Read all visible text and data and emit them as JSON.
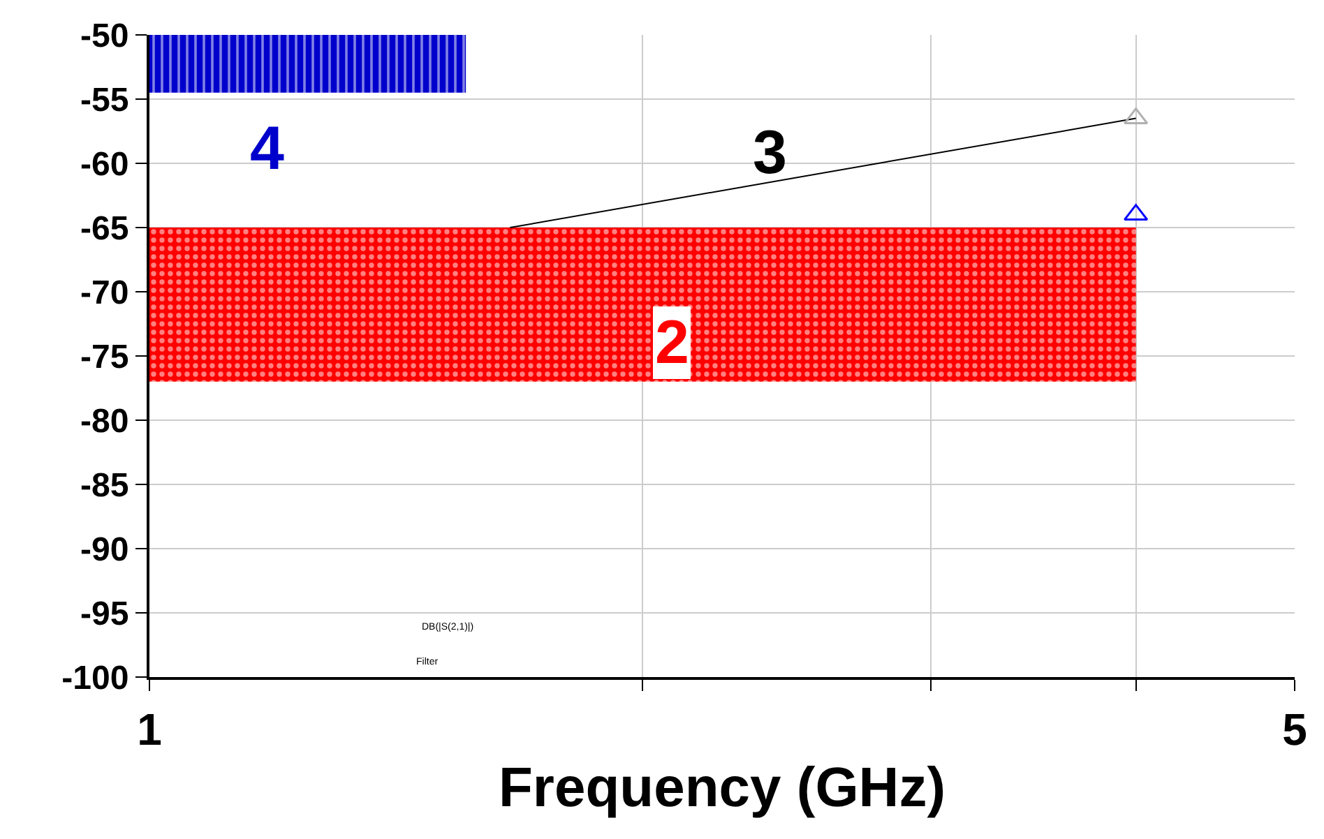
{
  "chart_data": {
    "type": "line",
    "xlabel": "Frequency (GHz)",
    "log": "x",
    "grid": true,
    "xlim": [
      1,
      5
    ],
    "xticks": [
      1,
      {
        "value": 2,
        "label": null
      },
      {
        "value": 3,
        "label": null
      },
      {
        "value": 4,
        "label": null
      },
      5
    ],
    "ylim": [
      -100,
      -50
    ],
    "yticks": [
      -100,
      -95,
      -90,
      -85,
      -80,
      -75,
      -70,
      -65,
      -60,
      -55,
      -50
    ],
    "series": [
      {
        "type": "area",
        "color": "#0000cc",
        "x": [
          1,
          1,
          1.56,
          1.56
        ],
        "values": [
          -54.5,
          -50,
          -50,
          -54.5
        ]
      },
      {
        "type": "area",
        "color": "#ff0000",
        "x": [
          1,
          1,
          4,
          4
        ],
        "values": [
          -77,
          -65,
          -65,
          -77
        ]
      },
      {
        "color": "#000000",
        "x": [
          1.66,
          4
        ],
        "values": [
          -65,
          -56.5
        ]
      },
      {
        "type": "scatter",
        "color": "#b0b0b0",
        "marker": "triangle",
        "x": [
          4
        ],
        "values": [
          -56.5
        ]
      },
      {
        "type": "scatter",
        "color": "#0000ff",
        "marker": "triangle",
        "x": [
          4
        ],
        "values": [
          -64
        ]
      }
    ],
    "annotations": [
      "4",
      "3",
      "2",
      "DB(|S(2,1)|)",
      "Filter"
    ]
  }
}
